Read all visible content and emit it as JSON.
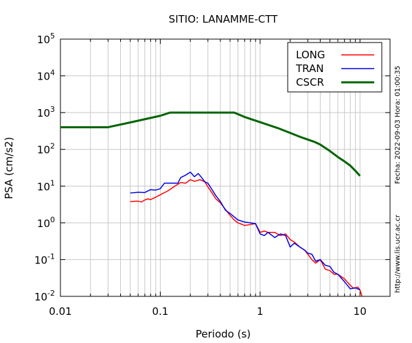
{
  "chart_data": {
    "type": "line",
    "title": "SITIO: LANAMME-CTT",
    "xlabel": "Periodo (s)",
    "ylabel": "PSA (cm/s2)",
    "x_scale": "log",
    "y_scale": "log",
    "xlim": [
      0.01,
      20
    ],
    "ylim": [
      0.01,
      100000
    ],
    "grid": true,
    "legend_position": "top-right",
    "x_ticks": [
      {
        "value": 0.01,
        "label": "0.01"
      },
      {
        "value": 0.1,
        "label": "0.1"
      },
      {
        "value": 1,
        "label": "1"
      },
      {
        "value": 10,
        "label": "10"
      }
    ],
    "y_ticks": [
      {
        "value": 0.01,
        "base": "10",
        "exp": "-2"
      },
      {
        "value": 0.1,
        "base": "10",
        "exp": "-1"
      },
      {
        "value": 1,
        "base": "10",
        "exp": "0"
      },
      {
        "value": 10,
        "base": "10",
        "exp": "1"
      },
      {
        "value": 100,
        "base": "10",
        "exp": "2"
      },
      {
        "value": 1000,
        "base": "10",
        "exp": "3"
      },
      {
        "value": 10000,
        "base": "10",
        "exp": "4"
      },
      {
        "value": 100000,
        "base": "10",
        "exp": "5"
      }
    ],
    "series": [
      {
        "name": "LONG",
        "color": "#ff0000",
        "width": 1.5,
        "x": [
          0.05,
          0.06,
          0.065,
          0.07,
          0.075,
          0.08,
          0.09,
          0.1,
          0.12,
          0.14,
          0.16,
          0.18,
          0.2,
          0.22,
          0.25,
          0.28,
          0.3,
          0.33,
          0.36,
          0.4,
          0.45,
          0.5,
          0.55,
          0.6,
          0.7,
          0.8,
          0.9,
          1.0,
          1.1,
          1.2,
          1.4,
          1.6,
          1.8,
          2.0,
          2.2,
          2.5,
          2.8,
          3.0,
          3.3,
          3.6,
          4.0,
          4.5,
          5.0,
          5.5,
          6.0,
          7.0,
          8.0,
          8.5,
          9.0,
          9.5,
          10.0,
          10.5
        ],
        "y": [
          3.8,
          3.9,
          3.7,
          4.2,
          4.5,
          4.3,
          5.0,
          5.8,
          7.5,
          10.0,
          12.5,
          12.0,
          15.0,
          13.5,
          15.0,
          13.0,
          9.5,
          6.5,
          4.5,
          3.5,
          2.3,
          1.6,
          1.2,
          1.0,
          0.85,
          0.9,
          0.95,
          0.55,
          0.6,
          0.55,
          0.55,
          0.45,
          0.5,
          0.35,
          0.3,
          0.22,
          0.18,
          0.14,
          0.1,
          0.08,
          0.1,
          0.055,
          0.05,
          0.04,
          0.04,
          0.03,
          0.02,
          0.017,
          0.017,
          0.018,
          0.015,
          0.01
        ]
      },
      {
        "name": "TRAN",
        "color": "#0000e6",
        "width": 1.5,
        "x": [
          0.05,
          0.06,
          0.07,
          0.08,
          0.09,
          0.1,
          0.11,
          0.13,
          0.15,
          0.16,
          0.18,
          0.2,
          0.22,
          0.24,
          0.26,
          0.28,
          0.3,
          0.33,
          0.36,
          0.4,
          0.45,
          0.5,
          0.6,
          0.7,
          0.8,
          0.9,
          1.0,
          1.1,
          1.2,
          1.4,
          1.6,
          1.8,
          2.0,
          2.2,
          2.5,
          2.8,
          3.0,
          3.3,
          3.6,
          4.0,
          4.5,
          5.0,
          5.5,
          6.0,
          7.0,
          8.0,
          9.0,
          10.0
        ],
        "y": [
          6.5,
          6.8,
          6.7,
          8.0,
          7.8,
          8.5,
          12.0,
          12.0,
          12.0,
          17.0,
          20.0,
          24.0,
          18.0,
          22.0,
          17.0,
          13.0,
          12.0,
          8.0,
          5.5,
          3.8,
          2.2,
          1.8,
          1.2,
          1.05,
          1.0,
          0.95,
          0.5,
          0.45,
          0.55,
          0.4,
          0.5,
          0.45,
          0.22,
          0.28,
          0.22,
          0.18,
          0.15,
          0.14,
          0.09,
          0.1,
          0.07,
          0.065,
          0.045,
          0.04,
          0.025,
          0.016,
          0.017,
          0.015
        ]
      },
      {
        "name": "CSCR",
        "color": "#006400",
        "width": 3,
        "x": [
          0.01,
          0.03,
          0.05,
          0.1,
          0.125,
          0.2,
          0.4,
          0.55,
          0.7,
          1.0,
          1.5,
          2.0,
          2.5,
          3.0,
          3.5,
          4.0,
          5.0,
          6.0,
          7.0,
          8.0,
          9.0,
          10.0
        ],
        "y": [
          400,
          400,
          540,
          820,
          1000,
          1000,
          1000,
          1000,
          760,
          550,
          380,
          280,
          220,
          185,
          160,
          135,
          90,
          62,
          47,
          36,
          26,
          19
        ]
      }
    ]
  },
  "side_text": {
    "date": "Fecha: 2022-09-03  Hora: 01:00:35",
    "url": "http://www.lis.ucr.ac.cr"
  }
}
